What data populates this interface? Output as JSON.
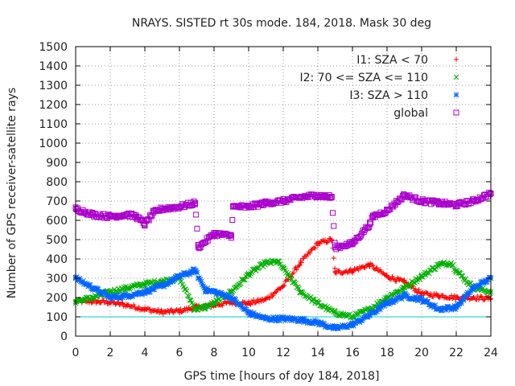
{
  "chart_data": {
    "type": "scatter",
    "title": "NRAYS. SISTED rt 30s mode. 184, 2018. Mask 30 deg",
    "xlabel": "GPS time [hours of doy 184, 2018]",
    "ylabel": "Number of GPS receiver-satellite rays",
    "xlim": [
      0,
      24
    ],
    "ylim": [
      0,
      1500
    ],
    "xticks": [
      0,
      2,
      4,
      6,
      8,
      10,
      12,
      14,
      16,
      18,
      20,
      22,
      24
    ],
    "yticks": [
      0,
      100,
      200,
      300,
      400,
      500,
      600,
      700,
      800,
      900,
      1000,
      1100,
      1200,
      1300,
      1400,
      1500
    ],
    "grid": true,
    "legend_position": "top-right",
    "reference_line": {
      "y": 100,
      "color": "#00cccc"
    },
    "series": [
      {
        "name": "I1: SZA < 70",
        "color": "#ff0000",
        "marker": "+",
        "x": [
          0,
          1,
          2,
          3,
          4,
          5,
          6,
          7,
          8,
          9,
          10,
          11,
          12,
          13,
          14,
          14.8,
          15,
          16,
          17,
          18,
          19,
          20,
          21,
          22,
          23,
          24
        ],
        "y": [
          180,
          180,
          175,
          160,
          140,
          125,
          130,
          150,
          160,
          175,
          170,
          190,
          260,
          380,
          480,
          500,
          330,
          340,
          370,
          310,
          280,
          220,
          210,
          200,
          200,
          195
        ]
      },
      {
        "name": "I2: 70 <= SZA <= 110",
        "color": "#00b000",
        "marker": "x",
        "x": [
          0,
          1,
          2,
          3,
          4,
          5,
          6,
          6.9,
          7.5,
          8,
          9,
          10,
          11,
          11.7,
          12,
          13,
          14,
          15,
          16,
          17,
          18,
          19,
          20,
          21,
          21.7,
          22,
          23,
          24
        ],
        "y": [
          180,
          200,
          230,
          250,
          270,
          285,
          300,
          140,
          150,
          170,
          230,
          320,
          380,
          385,
          350,
          230,
          170,
          120,
          100,
          140,
          200,
          250,
          310,
          370,
          380,
          340,
          250,
          230
        ]
      },
      {
        "name": "I3: SZA > 110",
        "color": "#0066ff",
        "marker": "*",
        "x": [
          0,
          1,
          2,
          3,
          4,
          5,
          6,
          6.9,
          7.5,
          8,
          9,
          10,
          11,
          12,
          13,
          14,
          15,
          16,
          17,
          18,
          19,
          20,
          21,
          22,
          23,
          24
        ],
        "y": [
          300,
          250,
          200,
          210,
          230,
          260,
          310,
          340,
          240,
          230,
          200,
          120,
          90,
          90,
          85,
          70,
          40,
          60,
          110,
          170,
          210,
          190,
          140,
          150,
          250,
          300
        ]
      },
      {
        "name": "global",
        "color": "#aa00cc",
        "marker": "square",
        "x": [
          0,
          1,
          2,
          3,
          3.5,
          4,
          4.5,
          5,
          6,
          6.9,
          7.1,
          8,
          9,
          9.1,
          10,
          11,
          12,
          13,
          14,
          14.8,
          15,
          16,
          17,
          17.2,
          18,
          19,
          20,
          21,
          22,
          23,
          24
        ],
        "y": [
          660,
          630,
          620,
          630,
          620,
          580,
          640,
          660,
          670,
          690,
          460,
          530,
          520,
          670,
          670,
          690,
          700,
          720,
          730,
          720,
          460,
          480,
          580,
          620,
          650,
          730,
          700,
          690,
          680,
          700,
          740
        ]
      }
    ]
  }
}
